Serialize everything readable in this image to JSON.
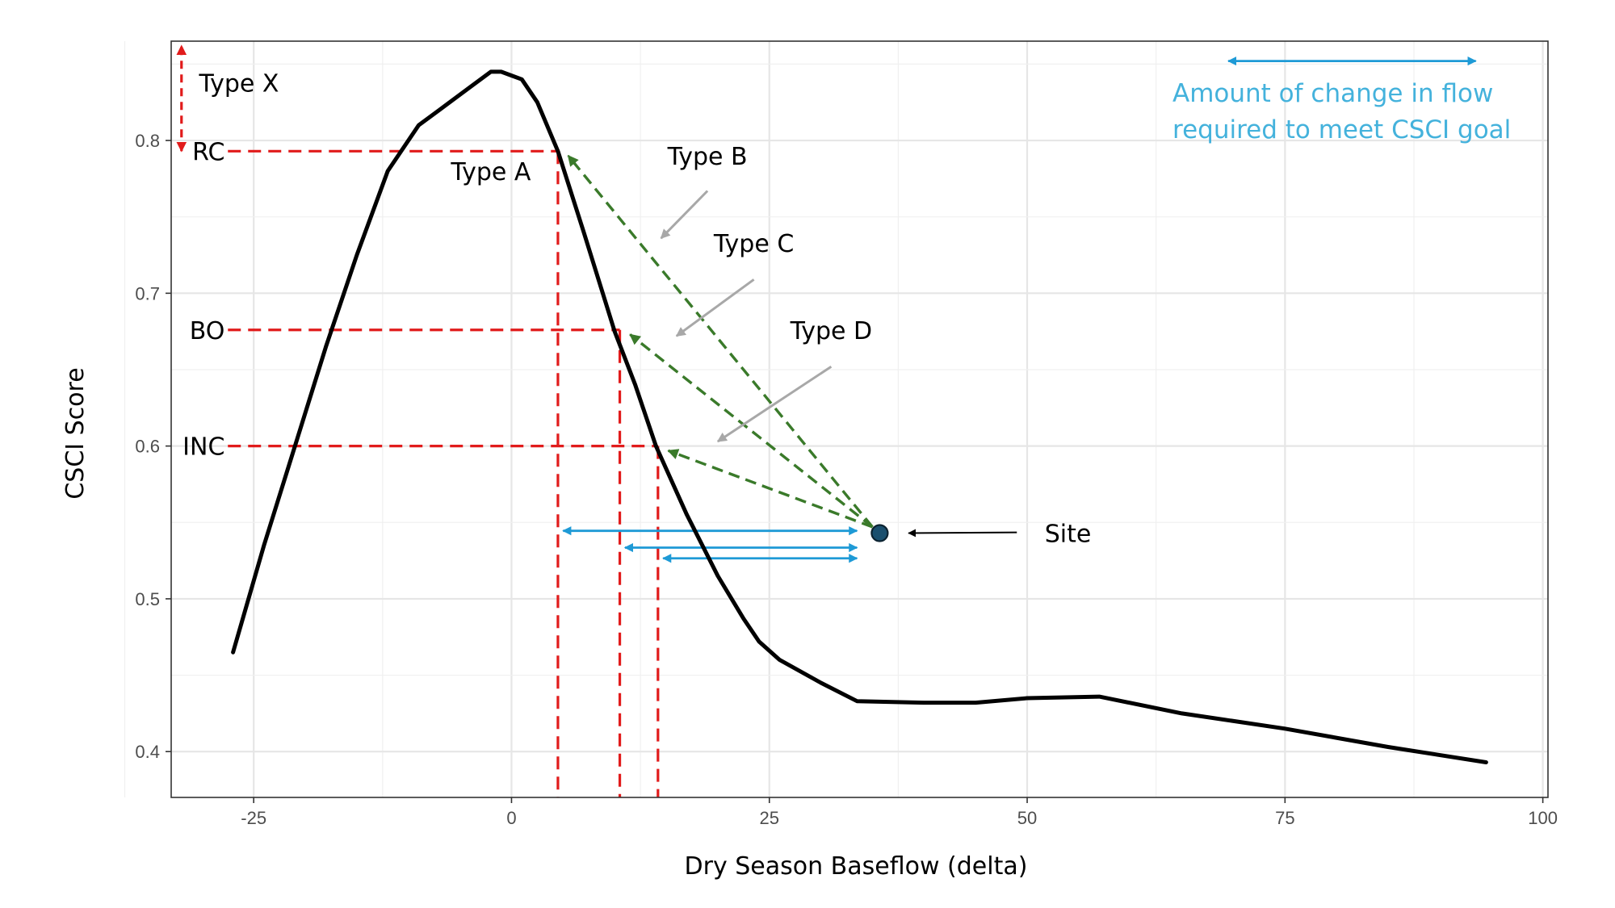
{
  "chart_data": {
    "type": "line",
    "xlabel": "Dry Season Baseflow (delta)",
    "ylabel": "CSCI Score",
    "xlim": [
      -33,
      100.5
    ],
    "ylim": [
      0.37,
      0.865
    ],
    "x_ticks": [
      -25,
      0,
      25,
      50,
      75,
      100
    ],
    "x_tick_labels": [
      "-25",
      "0",
      "25",
      "50",
      "75",
      "100"
    ],
    "y_ticks": [
      0.4,
      0.5,
      0.6,
      0.7,
      0.8
    ],
    "y_tick_labels": [
      "0.4",
      "0.5",
      "0.6",
      "0.7",
      "0.8"
    ],
    "grid": true,
    "series": [
      {
        "color": "#000000",
        "points": [
          [
            -27,
            0.465
          ],
          [
            -24,
            0.535
          ],
          [
            -21,
            0.6
          ],
          [
            -18,
            0.665
          ],
          [
            -15,
            0.725
          ],
          [
            -12,
            0.78
          ],
          [
            -9,
            0.81
          ],
          [
            -7,
            0.82
          ],
          [
            -4,
            0.835
          ],
          [
            -2,
            0.845
          ],
          [
            -1,
            0.845
          ],
          [
            1,
            0.84
          ],
          [
            2.5,
            0.825
          ],
          [
            4.5,
            0.793
          ],
          [
            7,
            0.74
          ],
          [
            10,
            0.675
          ],
          [
            12,
            0.64
          ],
          [
            14,
            0.6
          ],
          [
            17,
            0.555
          ],
          [
            20,
            0.515
          ],
          [
            22.5,
            0.487
          ],
          [
            24,
            0.472
          ],
          [
            26,
            0.46
          ],
          [
            30,
            0.445
          ],
          [
            33.5,
            0.433
          ],
          [
            40,
            0.432
          ],
          [
            45,
            0.432
          ],
          [
            50,
            0.435
          ],
          [
            57,
            0.436
          ],
          [
            65,
            0.425
          ],
          [
            75,
            0.415
          ],
          [
            85,
            0.403
          ],
          [
            94.5,
            0.393
          ]
        ]
      }
    ],
    "annotations": {
      "thresholds": [
        {
          "label": "RC",
          "y": 0.793,
          "x": 4.5
        },
        {
          "label": "BO",
          "y": 0.676,
          "x": 10.5
        },
        {
          "label": "INC",
          "y": 0.6,
          "x": 14.2
        }
      ],
      "type_x": {
        "label": "Type X",
        "x": -32,
        "y_from": 0.793,
        "y_to": 0.862
      },
      "type_labels": [
        {
          "label": "Type A",
          "x": -2,
          "y": 0.78
        },
        {
          "label": "Type B",
          "x": 19,
          "y": 0.79,
          "arrow_from": [
            19,
            0.767
          ],
          "arrow_to": [
            14.5,
            0.736
          ]
        },
        {
          "label": "Type C",
          "x": 23.5,
          "y": 0.733,
          "arrow_from": [
            23.5,
            0.709
          ],
          "arrow_to": [
            16,
            0.672
          ]
        },
        {
          "label": "Type D",
          "x": 31,
          "y": 0.676,
          "arrow_from": [
            31,
            0.652
          ],
          "arrow_to": [
            20,
            0.603
          ]
        }
      ],
      "site": {
        "label": "Site",
        "x": 35.7,
        "y": 0.543,
        "arrow_from": [
          49,
          0.5435
        ],
        "arrow_to": [
          38.5,
          0.543
        ]
      },
      "flow_arrows": [
        {
          "x_from": 4.5,
          "x_to": 33.5,
          "y": 0.5445
        },
        {
          "x_from": 10.5,
          "x_to": 33.5,
          "y": 0.5335
        },
        {
          "x_from": 14.2,
          "x_to": 33.5,
          "y": 0.5265
        }
      ],
      "legend_arrow": {
        "x_from": 69.5,
        "x_to": 93.5,
        "y": 0.852
      },
      "legend_text": [
        "Amount of change in flow",
        "required to meet CSCI goal"
      ],
      "colors": {
        "threshold": "#e11b1b",
        "type_arrow": "#3a7a2a",
        "flow_arrow": "#1e9ad6",
        "legend_text": "#44b2dc",
        "label_arrow": "#a8a8a8",
        "site_fill": "#1a4f6e",
        "curve": "#000000"
      }
    }
  }
}
